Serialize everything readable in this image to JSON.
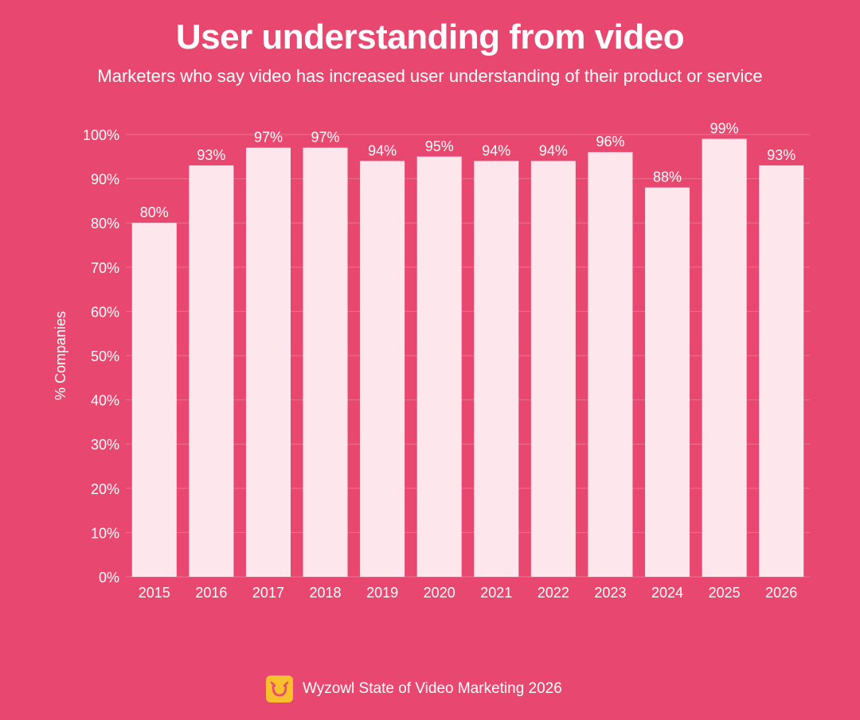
{
  "colors": {
    "background": "#e8486f",
    "bar": "#fde7ed",
    "grid": "#ef6f8d",
    "text": "#ffffff",
    "logo": "#f9bf2d",
    "logo_mark": "#e8486f"
  },
  "header": {
    "title": "User understanding from video",
    "subtitle": "Marketers who say video has increased user understanding of their product or service"
  },
  "footer": {
    "logo_icon": "wyzowl-owl-icon",
    "source": "Wyzowl State of Video Marketing 2026"
  },
  "chart_data": {
    "type": "bar",
    "title": "User understanding from video",
    "subtitle": "Marketers who say video has increased user understanding of their product or service",
    "xlabel": "",
    "ylabel": "% Companies",
    "categories": [
      "2015",
      "2016",
      "2017",
      "2018",
      "2019",
      "2020",
      "2021",
      "2022",
      "2023",
      "2024",
      "2025",
      "2026"
    ],
    "values": [
      80,
      93,
      97,
      97,
      94,
      95,
      94,
      94,
      96,
      88,
      99,
      93
    ],
    "value_labels": [
      "80%",
      "93%",
      "97%",
      "97%",
      "94%",
      "95%",
      "94%",
      "94%",
      "96%",
      "88%",
      "99%",
      "93%"
    ],
    "ylim": [
      0,
      100
    ],
    "yticks": [
      0,
      10,
      20,
      30,
      40,
      50,
      60,
      70,
      80,
      90,
      100
    ],
    "ytick_labels": [
      "0%",
      "10%",
      "20%",
      "30%",
      "40%",
      "50%",
      "60%",
      "70%",
      "80%",
      "90%",
      "100%"
    ],
    "grid": true,
    "legend": "none"
  }
}
